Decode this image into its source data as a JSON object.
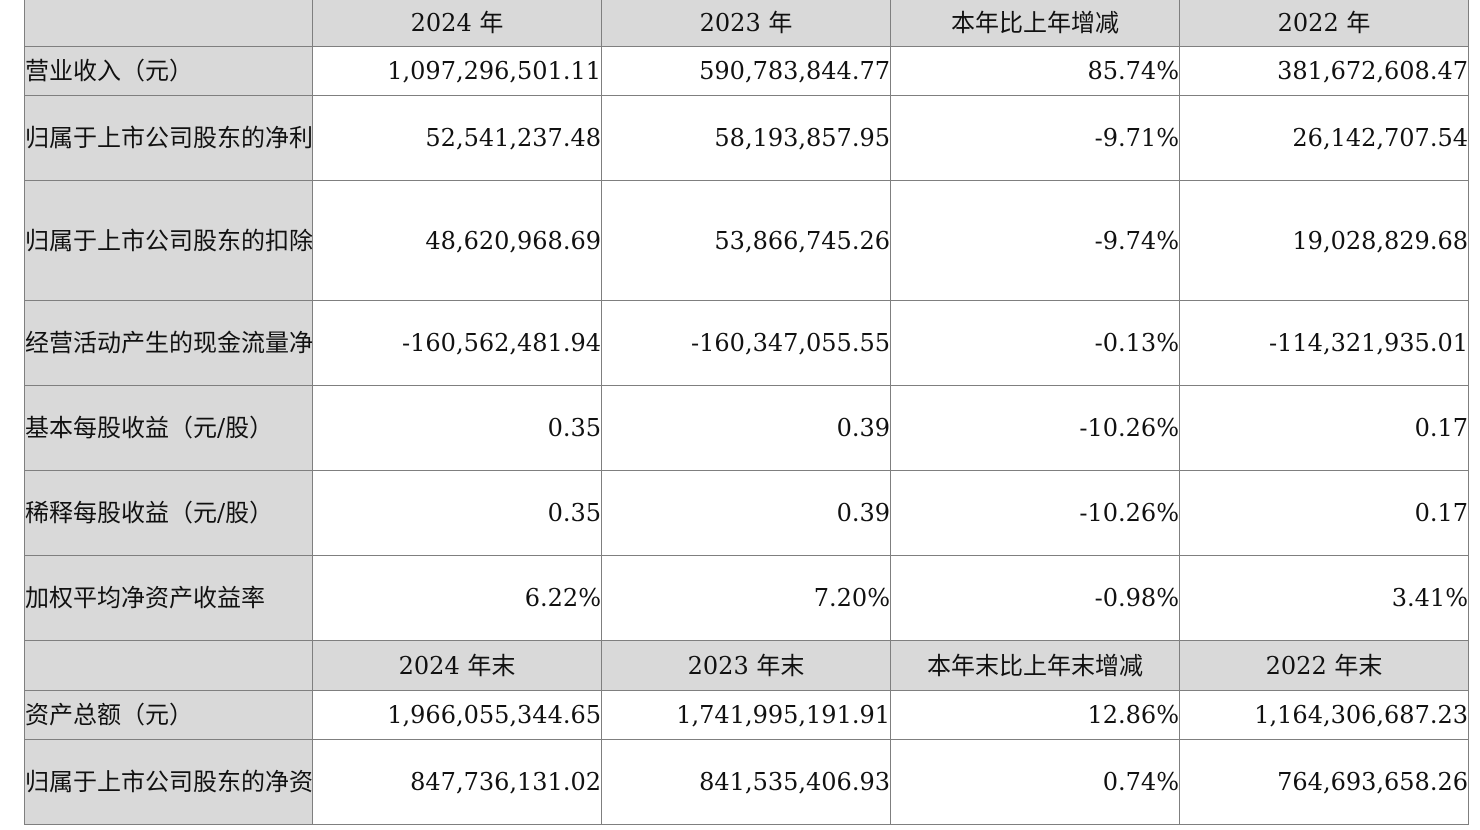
{
  "header1": {
    "label": "",
    "columns": [
      "2024 年",
      "2023 年",
      "本年比上年增减",
      "2022 年"
    ]
  },
  "rows1": [
    {
      "label": "营业收入（元）",
      "values": [
        "1,097,296,501.11",
        "590,783,844.77",
        "85.74%",
        "381,672,608.47"
      ]
    },
    {
      "label": "归属于上市公司股东的净利润（元）",
      "values": [
        "52,541,237.48",
        "58,193,857.95",
        "-9.71%",
        "26,142,707.54"
      ]
    },
    {
      "label": "归属于上市公司股东的扣除非经常性损益的净利润（元）",
      "values": [
        "48,620,968.69",
        "53,866,745.26",
        "-9.74%",
        "19,028,829.68"
      ]
    },
    {
      "label": "经营活动产生的现金流量净额（元）",
      "values": [
        "-160,562,481.94",
        "-160,347,055.55",
        "-0.13%",
        "-114,321,935.01"
      ]
    },
    {
      "label": "基本每股收益（元/股）",
      "values": [
        "0.35",
        "0.39",
        "-10.26%",
        "0.17"
      ]
    },
    {
      "label": "稀释每股收益（元/股）",
      "values": [
        "0.35",
        "0.39",
        "-10.26%",
        "0.17"
      ]
    },
    {
      "label": "加权平均净资产收益率",
      "values": [
        "6.22%",
        "7.20%",
        "-0.98%",
        "3.41%"
      ]
    }
  ],
  "header2": {
    "label": "",
    "columns": [
      "2024 年末",
      "2023 年末",
      "本年末比上年末增减",
      "2022 年末"
    ]
  },
  "rows2": [
    {
      "label": "资产总额（元）",
      "values": [
        "1,966,055,344.65",
        "1,741,995,191.91",
        "12.86%",
        "1,164,306,687.23"
      ]
    },
    {
      "label": "归属于上市公司股东的净资产（元）",
      "values": [
        "847,736,131.02",
        "841,535,406.93",
        "0.74%",
        "764,693,658.26"
      ]
    }
  ]
}
